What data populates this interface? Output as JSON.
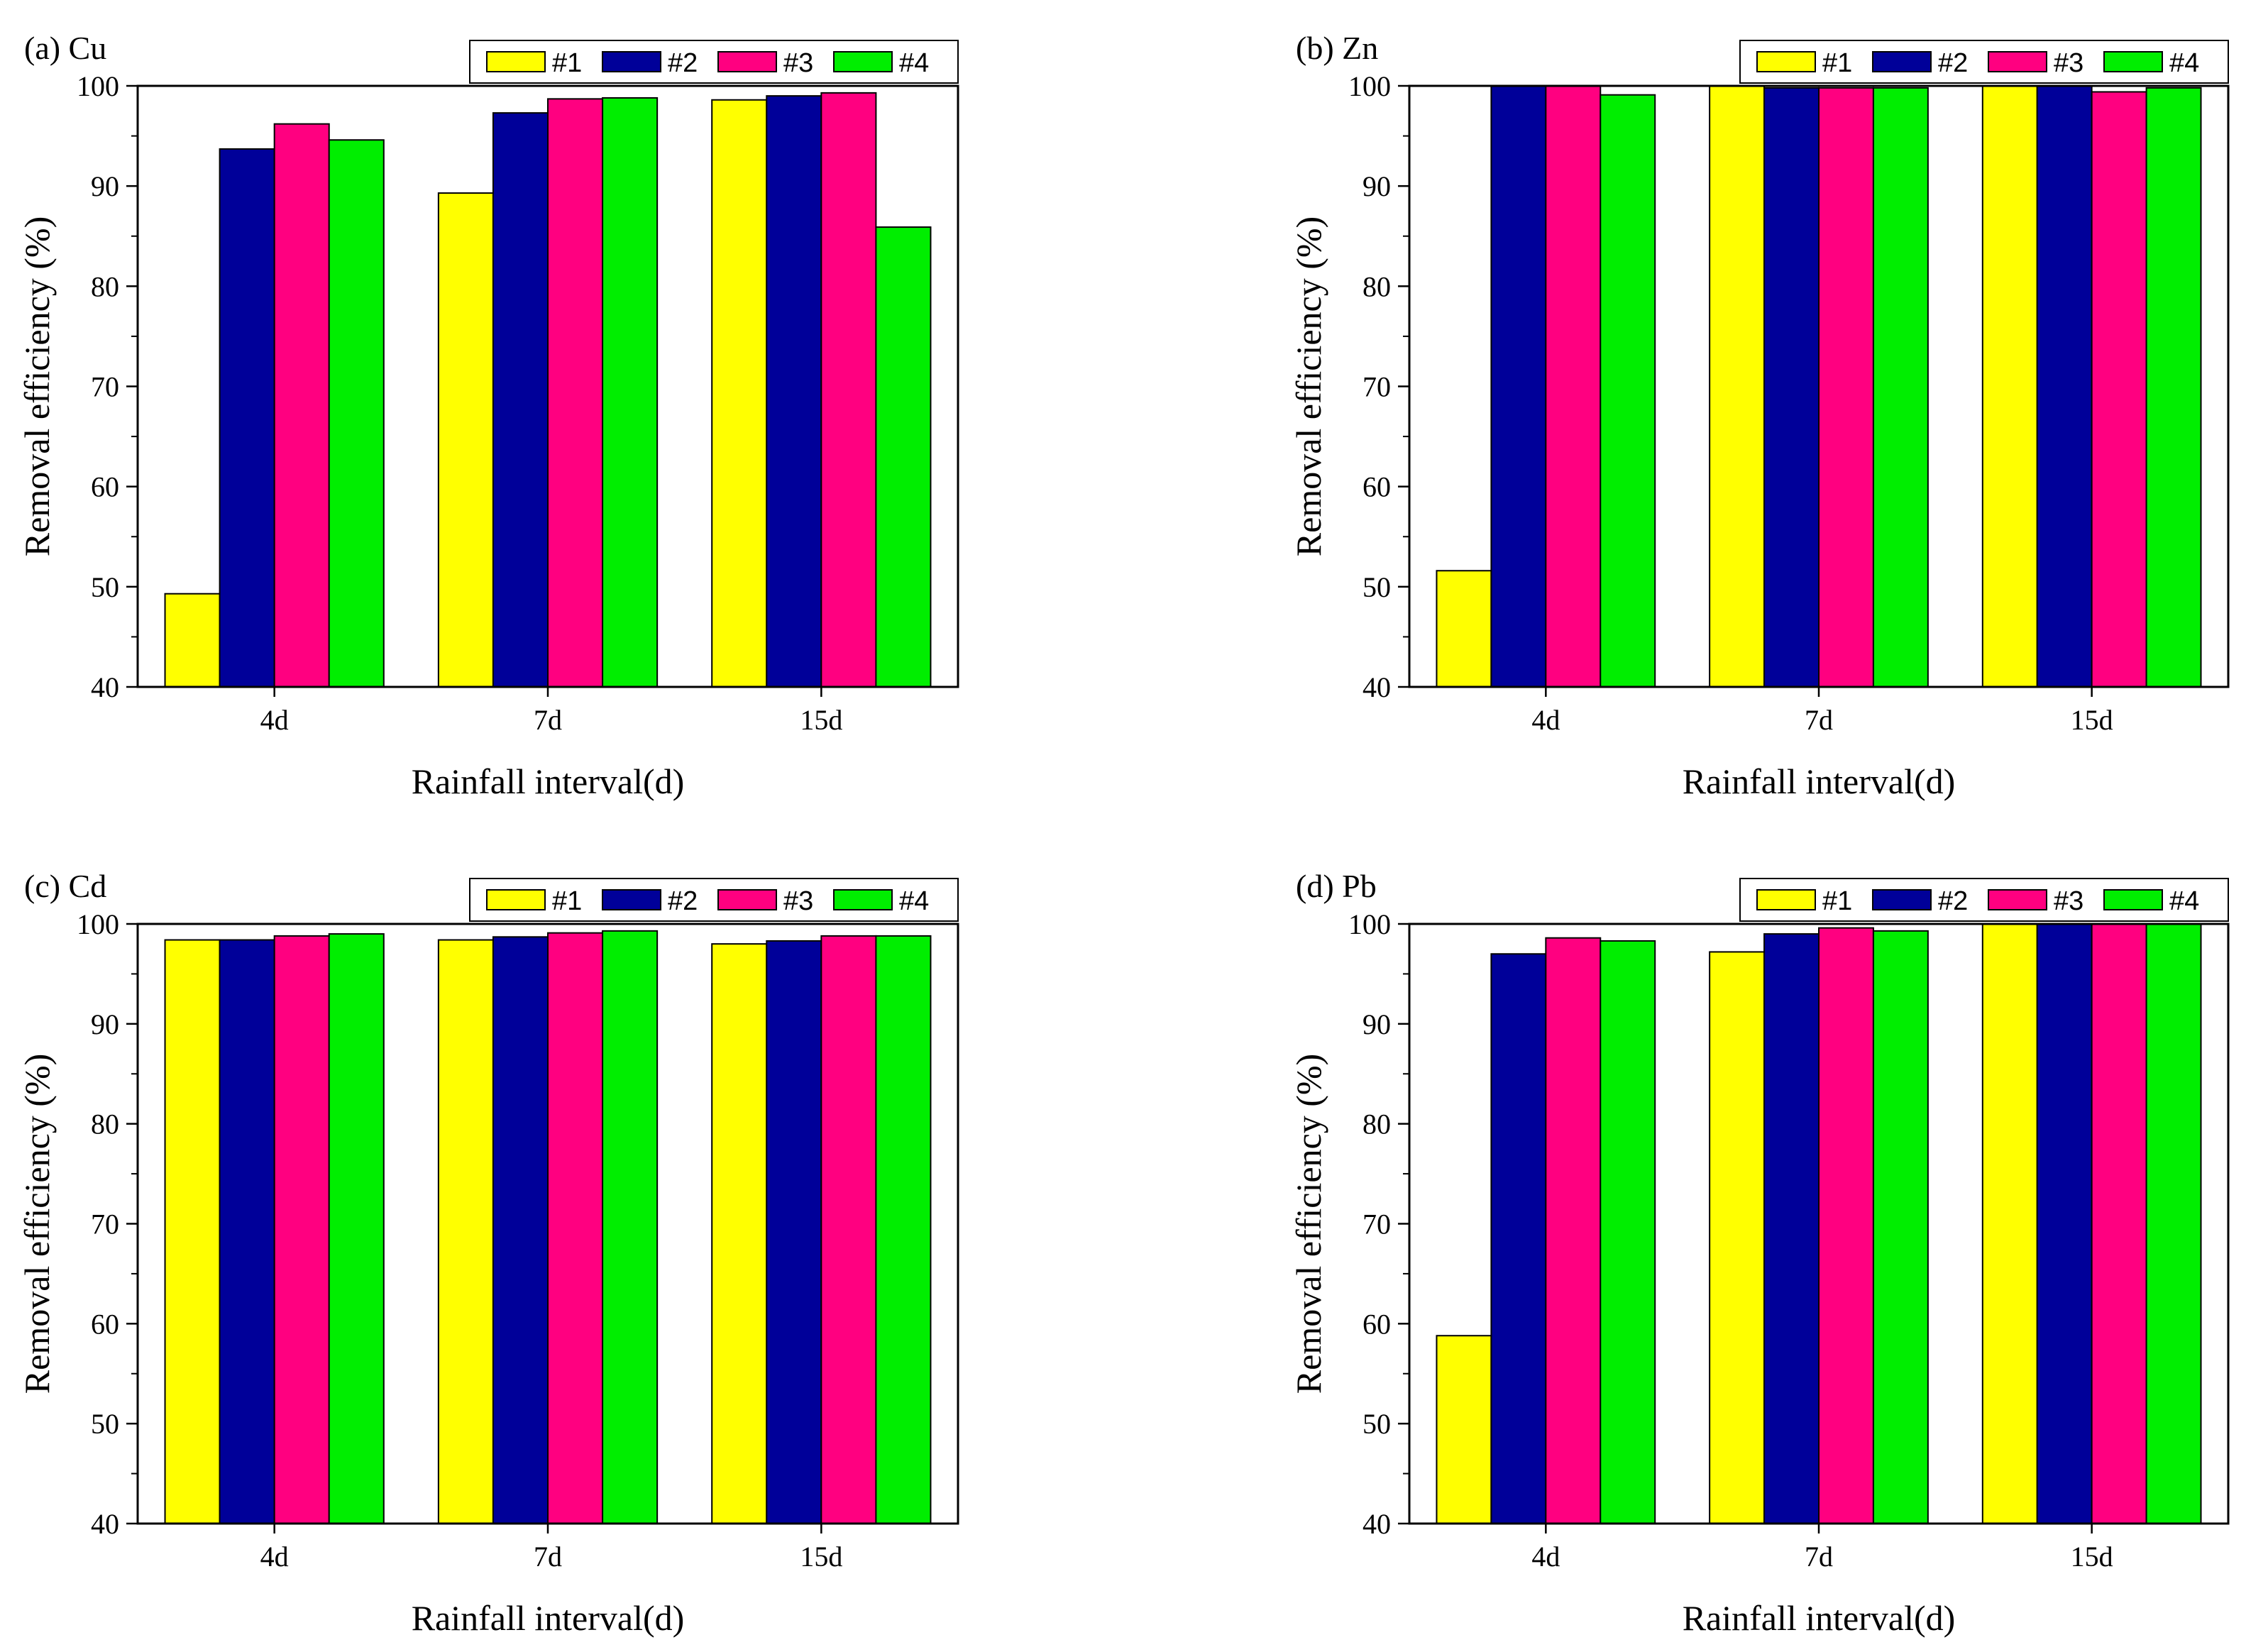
{
  "figure": {
    "legend_entries": [
      "#1",
      "#2",
      "#3",
      "#4"
    ],
    "series_colors": [
      "#ffff00",
      "#000099",
      "#ff0080",
      "#00ee00"
    ]
  },
  "chart_data": [
    {
      "type": "bar",
      "title": "(a) Cu",
      "xlabel": "Rainfall interval(d)",
      "ylabel": "Removal efficiency (%)",
      "categories": [
        "4d",
        "7d",
        "15d"
      ],
      "ylim": [
        40,
        100
      ],
      "yticks": [
        40,
        50,
        60,
        70,
        80,
        90,
        100
      ],
      "legend_position": "top-right",
      "series": [
        {
          "name": "#1",
          "values": [
            49.3,
            89.3,
            98.6
          ]
        },
        {
          "name": "#2",
          "values": [
            93.7,
            97.3,
            99.0
          ]
        },
        {
          "name": "#3",
          "values": [
            96.2,
            98.7,
            99.3
          ]
        },
        {
          "name": "#4",
          "values": [
            94.6,
            98.8,
            85.9
          ]
        }
      ]
    },
    {
      "type": "bar",
      "title": "(b) Zn",
      "xlabel": "Rainfall interval(d)",
      "ylabel": "Removal efficiency (%)",
      "categories": [
        "4d",
        "7d",
        "15d"
      ],
      "ylim": [
        40,
        100
      ],
      "yticks": [
        40,
        50,
        60,
        70,
        80,
        90,
        100
      ],
      "legend_position": "top-right",
      "series": [
        {
          "name": "#1",
          "values": [
            51.6,
            100.0,
            100.0
          ]
        },
        {
          "name": "#2",
          "values": [
            100.0,
            99.8,
            100.0
          ]
        },
        {
          "name": "#3",
          "values": [
            100.0,
            99.8,
            99.4
          ]
        },
        {
          "name": "#4",
          "values": [
            99.1,
            99.8,
            99.8
          ]
        }
      ]
    },
    {
      "type": "bar",
      "title": "(c) Cd",
      "xlabel": "Rainfall interval(d)",
      "ylabel": "Removal efficiency (%)",
      "categories": [
        "4d",
        "7d",
        "15d"
      ],
      "ylim": [
        40,
        100
      ],
      "yticks": [
        40,
        50,
        60,
        70,
        80,
        90,
        100
      ],
      "legend_position": "top-right",
      "series": [
        {
          "name": "#1",
          "values": [
            98.4,
            98.4,
            98.0
          ]
        },
        {
          "name": "#2",
          "values": [
            98.4,
            98.7,
            98.3
          ]
        },
        {
          "name": "#3",
          "values": [
            98.8,
            99.1,
            98.8
          ]
        },
        {
          "name": "#4",
          "values": [
            99.0,
            99.3,
            98.8
          ]
        }
      ]
    },
    {
      "type": "bar",
      "title": "(d) Pb",
      "xlabel": "Rainfall interval(d)",
      "ylabel": "Removal efficiency (%)",
      "categories": [
        "4d",
        "7d",
        "15d"
      ],
      "ylim": [
        40,
        100
      ],
      "yticks": [
        40,
        50,
        60,
        70,
        80,
        90,
        100
      ],
      "legend_position": "top-right",
      "series": [
        {
          "name": "#1",
          "values": [
            58.8,
            97.2,
            100.0
          ]
        },
        {
          "name": "#2",
          "values": [
            97.0,
            99.0,
            100.0
          ]
        },
        {
          "name": "#3",
          "values": [
            98.6,
            99.6,
            100.0
          ]
        },
        {
          "name": "#4",
          "values": [
            98.3,
            99.3,
            100.0
          ]
        }
      ]
    }
  ]
}
